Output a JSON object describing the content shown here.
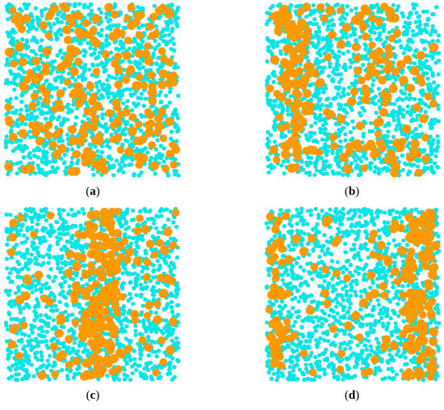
{
  "colors": {
    "minor": "#FF9900",
    "major": "#00E5E5",
    "background": "#FFFFFF"
  },
  "panels": [
    {
      "id": "a",
      "label": "a",
      "pattern": "random"
    },
    {
      "id": "b",
      "label": "b",
      "pattern": "weak-band"
    },
    {
      "id": "c",
      "label": "c",
      "pattern": "center-band"
    },
    {
      "id": "d",
      "label": "d",
      "pattern": "edge-band"
    }
  ]
}
